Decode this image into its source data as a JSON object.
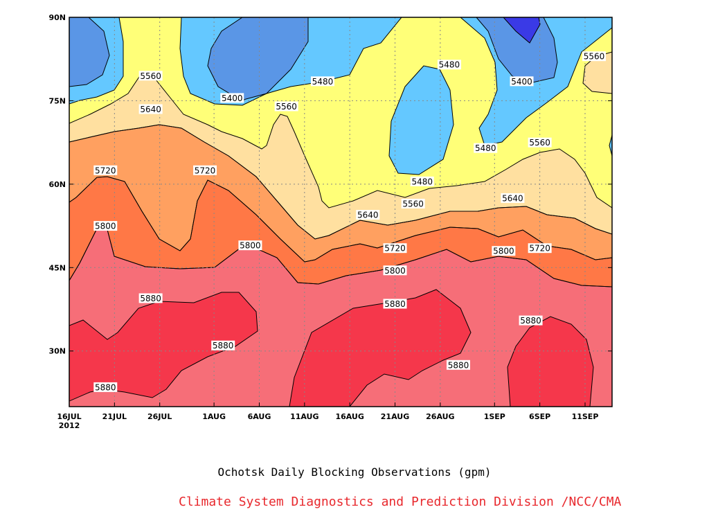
{
  "chart_data": {
    "type": "contour",
    "title": "Ochotsk Daily Blocking Observations (gpm)",
    "credit": "Climate System Diagnostics and Prediction Division /NCC/CMA",
    "credit_color": "#e8282d",
    "x_tick_labels": [
      "16JUL",
      "21JUL",
      "26JUL",
      "1AUG",
      "6AUG",
      "11AUG",
      "16AUG",
      "21AUG",
      "26AUG",
      "1SEP",
      "6SEP",
      "11SEP"
    ],
    "x_year_label": "2012",
    "y_tick_labels": [
      "90N",
      "75N",
      "60N",
      "45N",
      "30N"
    ],
    "ylim": [
      20,
      90
    ],
    "grid": true,
    "levels": [
      {
        "value": "<5400",
        "color": "#3a3ae6"
      },
      {
        "value": "5400-5480",
        "color": "#5a96e6"
      },
      {
        "value": "5480-5560",
        "color": "#64c8ff"
      },
      {
        "value": "5560-5640",
        "color": "#ffff78"
      },
      {
        "value": "5640-5720",
        "color": "#ffe0a0"
      },
      {
        "value": "5720-5800",
        "color": "#ffa060"
      },
      {
        "value": "5800-5880",
        "color": "#ff7846"
      },
      {
        "value": "5880-5960",
        "color": "#f66e78"
      },
      {
        "value": ">5960",
        "color": "#f5374b"
      }
    ],
    "contour_labels": [
      {
        "text": "5560",
        "date": "25JUL",
        "lat": 79.5
      },
      {
        "text": "5640",
        "date": "25JUL",
        "lat": 73.5
      },
      {
        "text": "5720",
        "date": "20JUL",
        "lat": 62.5
      },
      {
        "text": "5720",
        "date": "31JUL",
        "lat": 62.5
      },
      {
        "text": "5800",
        "date": "20JUL",
        "lat": 52.5
      },
      {
        "text": "5800",
        "date": "5AUG",
        "lat": 49
      },
      {
        "text": "5880",
        "date": "25JUL",
        "lat": 39.5
      },
      {
        "text": "5880",
        "date": "2AUG",
        "lat": 31
      },
      {
        "text": "5880",
        "date": "20JUL",
        "lat": 23.5
      },
      {
        "text": "5400",
        "date": "3AUG",
        "lat": 75.5
      },
      {
        "text": "5560",
        "date": "9AUG",
        "lat": 74
      },
      {
        "text": "5480",
        "date": "13AUG",
        "lat": 78.5
      },
      {
        "text": "5640",
        "date": "18AUG",
        "lat": 54.5
      },
      {
        "text": "5720",
        "date": "21AUG",
        "lat": 48.5
      },
      {
        "text": "5800",
        "date": "21AUG",
        "lat": 44.5
      },
      {
        "text": "5880",
        "date": "21AUG",
        "lat": 38.5
      },
      {
        "text": "5880",
        "date": "28AUG",
        "lat": 27.5
      },
      {
        "text": "5480",
        "date": "27AUG",
        "lat": 81.5
      },
      {
        "text": "5480",
        "date": "24AUG",
        "lat": 60.5
      },
      {
        "text": "5560",
        "date": "23AUG",
        "lat": 56.5
      },
      {
        "text": "5480",
        "date": "31AUG",
        "lat": 66.5
      },
      {
        "text": "5400",
        "date": "4SEP",
        "lat": 78.5
      },
      {
        "text": "5560",
        "date": "6SEP",
        "lat": 67.5
      },
      {
        "text": "5640",
        "date": "3SEP",
        "lat": 57.5
      },
      {
        "text": "5800",
        "date": "2SEP",
        "lat": 48
      },
      {
        "text": "5720",
        "date": "6SEP",
        "lat": 48.5
      },
      {
        "text": "5880",
        "date": "5SEP",
        "lat": 35.5
      },
      {
        "text": "5560",
        "date": "12SEP",
        "lat": 83
      }
    ]
  }
}
